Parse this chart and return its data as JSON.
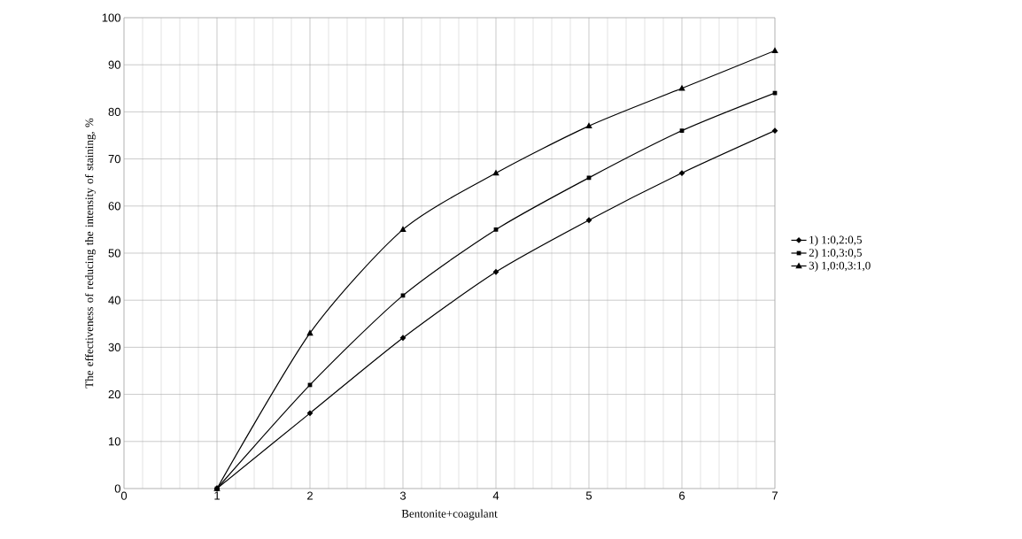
{
  "chart_data": {
    "type": "line",
    "xlabel": "Bentonite+coagulant",
    "ylabel": "The effectiveness of reducing the intensity of staining, %",
    "x": [
      1,
      2,
      3,
      4,
      5,
      6,
      7
    ],
    "series": [
      {
        "name": "1) 1:0,2:0,5",
        "color": "#000000",
        "marker": "diamond",
        "values": [
          0,
          16,
          32,
          46,
          57,
          67,
          76
        ]
      },
      {
        "name": "2) 1:0,3:0,5",
        "color": "#000000",
        "marker": "square",
        "values": [
          0,
          22,
          41,
          55,
          66,
          76,
          84
        ]
      },
      {
        "name": "3) 1,0:0,3:1,0",
        "color": "#000000",
        "marker": "triangle",
        "values": [
          0,
          33,
          55,
          67,
          77,
          85,
          93
        ]
      }
    ],
    "xlim": [
      0,
      7
    ],
    "xticks": [
      0,
      1,
      2,
      3,
      4,
      5,
      6,
      7
    ],
    "ylim": [
      0,
      100
    ],
    "yticks": [
      0,
      10,
      20,
      30,
      40,
      50,
      60,
      70,
      80,
      90,
      100
    ],
    "grid": true,
    "legend": "right",
    "line_style": "solid"
  }
}
